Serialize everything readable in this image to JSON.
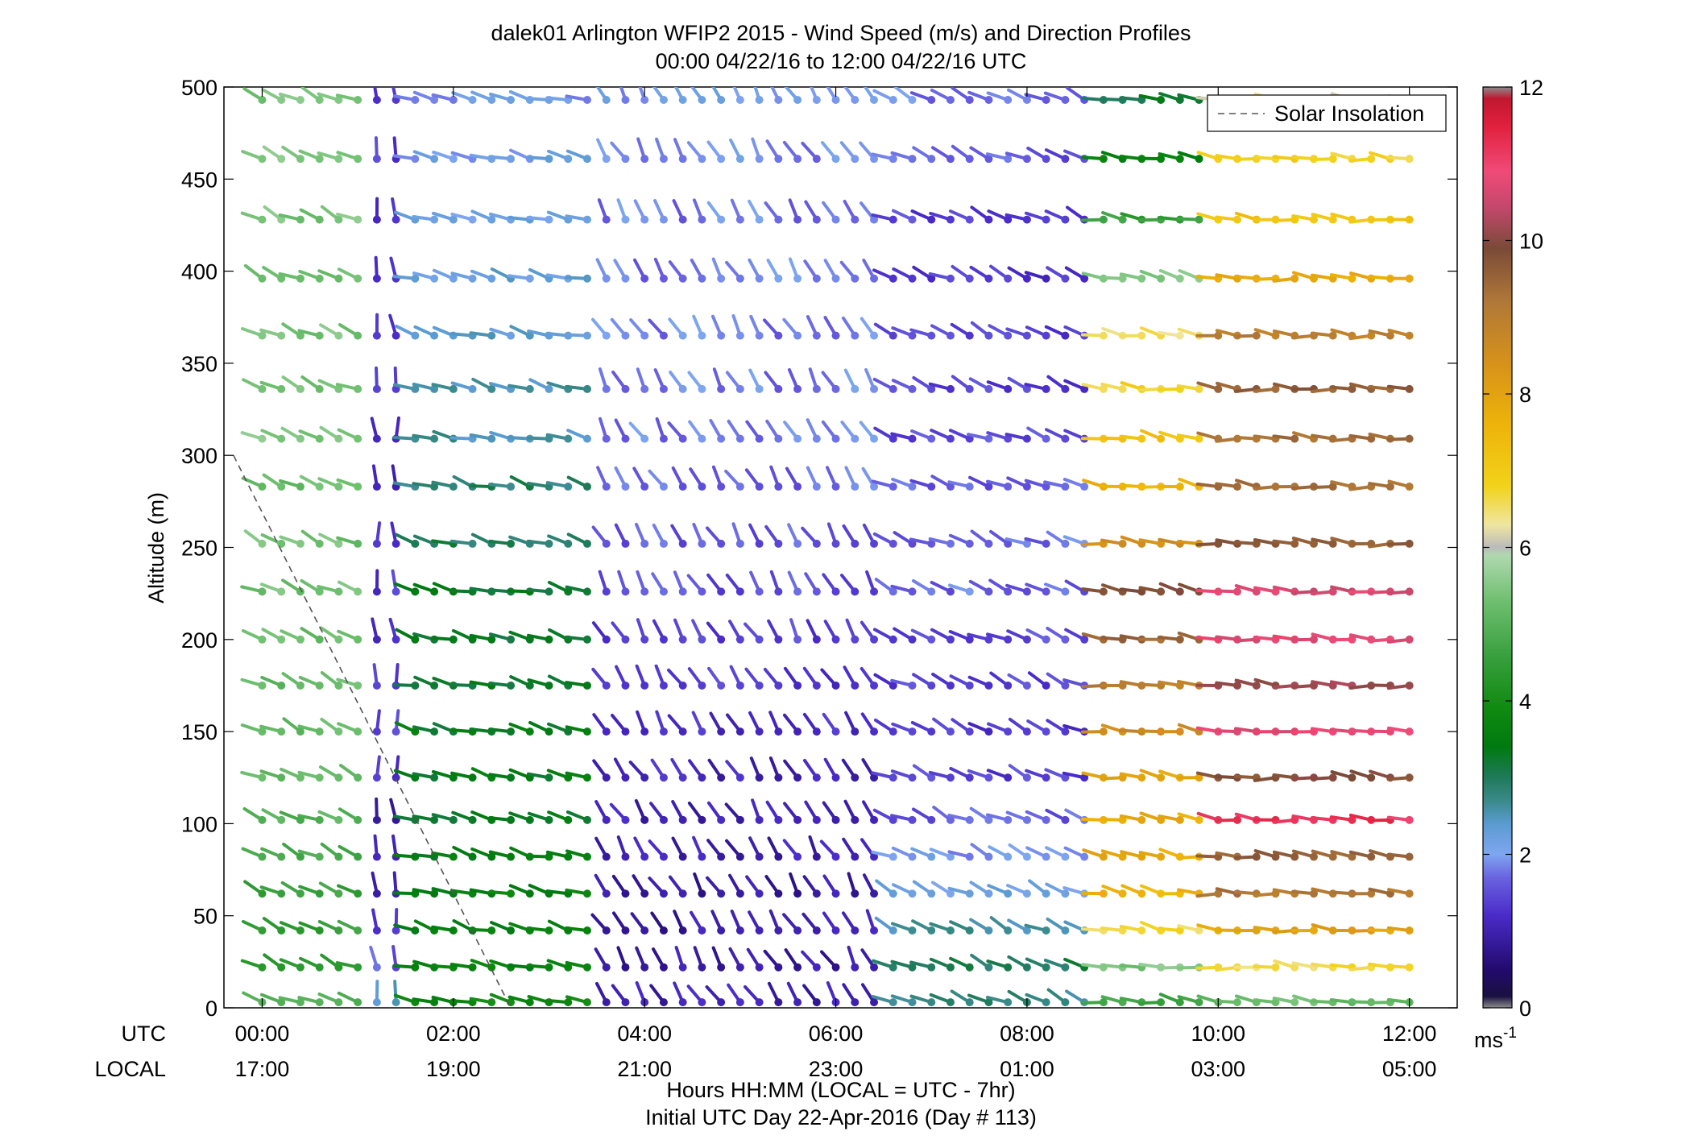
{
  "chart_data": {
    "type": "wind-barb-profile",
    "title": "dalek01 Arlington WFIP2 2015 - Wind Speed (m/s) and Direction Profiles",
    "subtitle": "00:00 04/22/16 to 12:00 04/22/16  UTC",
    "ylabel": "Altitude (m)",
    "ylim": [
      0,
      500
    ],
    "yticks": [
      "0",
      "50",
      "100",
      "150",
      "200",
      "250",
      "300",
      "350",
      "400",
      "450",
      "500"
    ],
    "xlim_hours": [
      -0.4,
      12.5
    ],
    "xticks_utc": [
      "00:00",
      "02:00",
      "04:00",
      "06:00",
      "08:00",
      "10:00",
      "12:00"
    ],
    "xticks_local": [
      "17:00",
      "19:00",
      "21:00",
      "23:00",
      "01:00",
      "03:00",
      "05:00"
    ],
    "xrow_label_utc": "UTC",
    "xrow_label_local": "LOCAL",
    "xlabel_line1": "Hours HH:MM  (LOCAL = UTC - 7hr)",
    "xlabel_line2": "Initial UTC Day 22-Apr-2016 (Day # 113)",
    "legend": {
      "label": "Solar Insolation",
      "position": "top-right"
    },
    "solar_insolation": {
      "x_hours": [
        -0.3,
        2.6
      ],
      "y_m": [
        300,
        0
      ]
    },
    "colorbar": {
      "range": [
        0,
        12
      ],
      "ticks": [
        "0",
        "2",
        "4",
        "6",
        "8",
        "10",
        "12"
      ],
      "unit_base": "ms",
      "unit_exp": "-1",
      "stops": [
        [
          0,
          "#8c8c8c"
        ],
        [
          0.15,
          "#1a1040"
        ],
        [
          0.5,
          "#220a6e"
        ],
        [
          1.2,
          "#4a2bc8"
        ],
        [
          1.7,
          "#6a63e0"
        ],
        [
          2.0,
          "#7fa6f0"
        ],
        [
          2.4,
          "#5a9bd0"
        ],
        [
          2.7,
          "#3a8a8a"
        ],
        [
          3.0,
          "#1f7a5a"
        ],
        [
          3.4,
          "#007a10"
        ],
        [
          3.9,
          "#108a10"
        ],
        [
          4.6,
          "#3aa040"
        ],
        [
          5.3,
          "#6fbf70"
        ],
        [
          5.9,
          "#b0d8b0"
        ],
        [
          6.0,
          "#bbbbbb"
        ],
        [
          6.3,
          "#efe6a0"
        ],
        [
          6.8,
          "#f2d21a"
        ],
        [
          7.6,
          "#eeb30a"
        ],
        [
          8.4,
          "#d6921a"
        ],
        [
          9.2,
          "#b07838"
        ],
        [
          9.9,
          "#7a4a38"
        ],
        [
          10.4,
          "#c0486a"
        ],
        [
          10.9,
          "#f04a78"
        ],
        [
          11.5,
          "#e0203c"
        ],
        [
          11.85,
          "#c01830"
        ],
        [
          12,
          "#8c8c8c"
        ]
      ]
    },
    "time_step_hours": 0.2,
    "time_start_hours": 0.0,
    "altitudes_m": [
      3,
      22,
      42,
      62,
      82,
      102,
      125,
      150,
      175,
      200,
      226,
      252,
      283,
      309,
      336,
      365,
      396,
      428,
      461,
      493
    ],
    "segments": [
      {
        "t0": 0.0,
        "t1": 1.1,
        "dir": 295,
        "spd": [
          5.0,
          4.5,
          4.5,
          4.6,
          4.8,
          5.0,
          5.2,
          5.2,
          5.2,
          5.3,
          5.3,
          5.3,
          5.3,
          5.4,
          5.4,
          5.4,
          5.4,
          5.4,
          5.4,
          5.4
        ]
      },
      {
        "t0": 1.1,
        "t1": 1.6,
        "dir": 355,
        "spd": [
          2.5,
          1.6,
          1.2,
          1.0,
          1.0,
          1.0,
          1.2,
          1.4,
          1.3,
          1.3,
          1.3,
          1.3,
          1.2,
          1.2,
          1.2,
          1.2,
          1.3,
          1.3,
          1.3,
          1.3
        ]
      },
      {
        "t0": 1.6,
        "t1": 3.6,
        "dir": 285,
        "spd": [
          3.8,
          3.6,
          3.6,
          3.6,
          3.5,
          3.4,
          3.4,
          3.4,
          3.3,
          3.2,
          3.2,
          3.0,
          2.9,
          2.6,
          2.5,
          2.4,
          2.3,
          2.2,
          2.1,
          2.0
        ]
      },
      {
        "t0": 3.6,
        "t1": 6.6,
        "dir": 330,
        "spd": [
          1.0,
          0.9,
          0.9,
          0.9,
          1.0,
          1.0,
          1.1,
          1.2,
          1.3,
          1.4,
          1.5,
          1.6,
          1.7,
          1.8,
          1.8,
          1.8,
          1.8,
          1.8,
          1.9,
          2.0
        ]
      },
      {
        "t0": 6.6,
        "t1": 8.8,
        "dir": 295,
        "spd": [
          2.8,
          3.0,
          2.6,
          2.2,
          2.0,
          1.6,
          1.4,
          1.3,
          1.4,
          1.5,
          1.7,
          1.7,
          1.6,
          1.5,
          1.4,
          1.4,
          1.3,
          1.4,
          1.6,
          1.8
        ]
      },
      {
        "t0": 8.8,
        "t1": 10.0,
        "dir": 280,
        "spd": [
          4.6,
          5.4,
          6.6,
          7.5,
          7.8,
          7.8,
          8.0,
          8.6,
          9.0,
          9.5,
          9.8,
          8.5,
          7.6,
          7.2,
          6.8,
          6.5,
          5.5,
          4.5,
          3.6,
          3.2
        ]
      },
      {
        "t0": 10.0,
        "t1": 12.0,
        "dir": 275,
        "spd": [
          5.2,
          6.6,
          8.0,
          9.2,
          9.6,
          11.2,
          9.8,
          10.8,
          10.2,
          10.8,
          10.7,
          9.6,
          9.4,
          9.3,
          9.6,
          9.0,
          7.8,
          7.2,
          6.8,
          6.3
        ]
      }
    ]
  }
}
